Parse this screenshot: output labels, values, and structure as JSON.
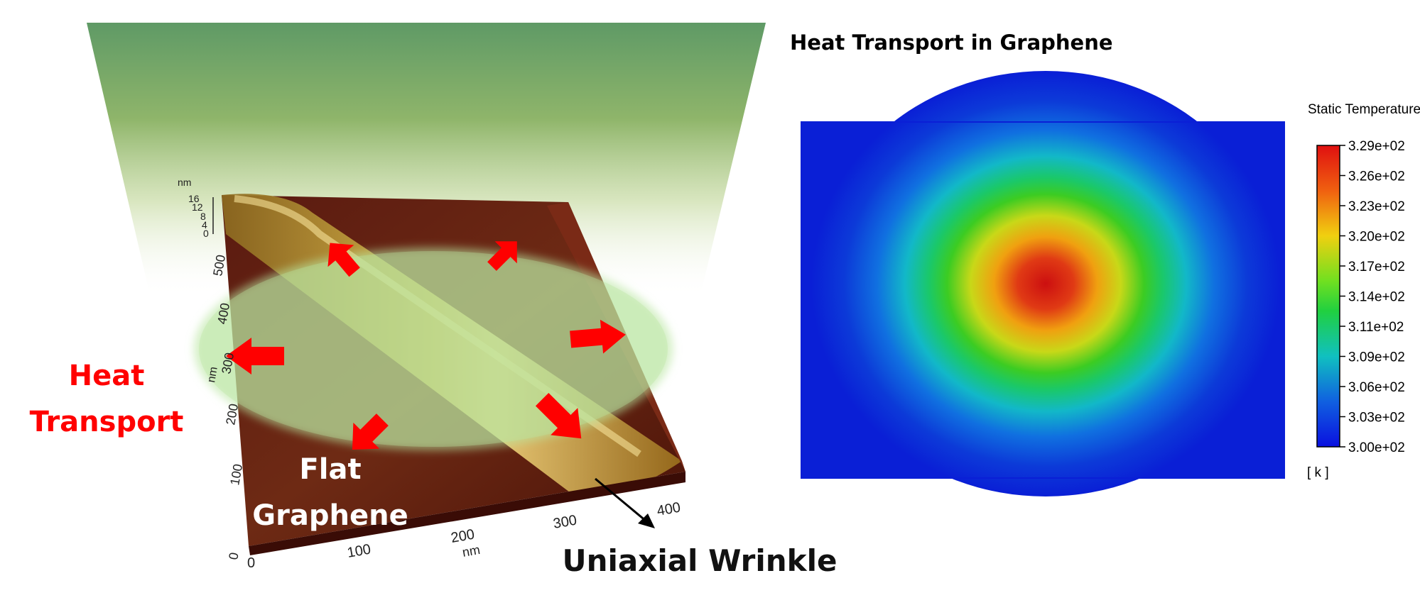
{
  "title": "Heat Transport in Graphene",
  "labels": {
    "heat_transport_line1": "Heat",
    "heat_transport_line2": "Transport",
    "flat_graphene_line1": "Flat",
    "flat_graphene_line2": "Graphene",
    "uniaxial_wrinkle": "Uniaxial Wrinkle"
  },
  "afm_axes": {
    "z_unit": "nm",
    "z_ticks": [
      "16",
      "12",
      "8",
      "4",
      "0"
    ],
    "y_unit": "nm",
    "y_ticks": [
      "500",
      "400",
      "300",
      "200",
      "100",
      "0"
    ],
    "x_unit": "nm",
    "x_ticks": [
      "0",
      "100",
      "200",
      "300",
      "400"
    ]
  },
  "colorbar": {
    "title": "Static Temperature",
    "unit": "[ k ]",
    "ticks": [
      "3.29e+02",
      "3.26e+02",
      "3.23e+02",
      "3.20e+02",
      "3.17e+02",
      "3.14e+02",
      "3.11e+02",
      "3.09e+02",
      "3.06e+02",
      "3.03e+02",
      "3.00e+02"
    ]
  },
  "colors": {
    "arrow": "#ff0000",
    "glow_ellipse": "#b9e6a0",
    "cone_top": "#5f9a66",
    "heat_center": "#cc1010",
    "heat_background": "#0a1fd6"
  }
}
